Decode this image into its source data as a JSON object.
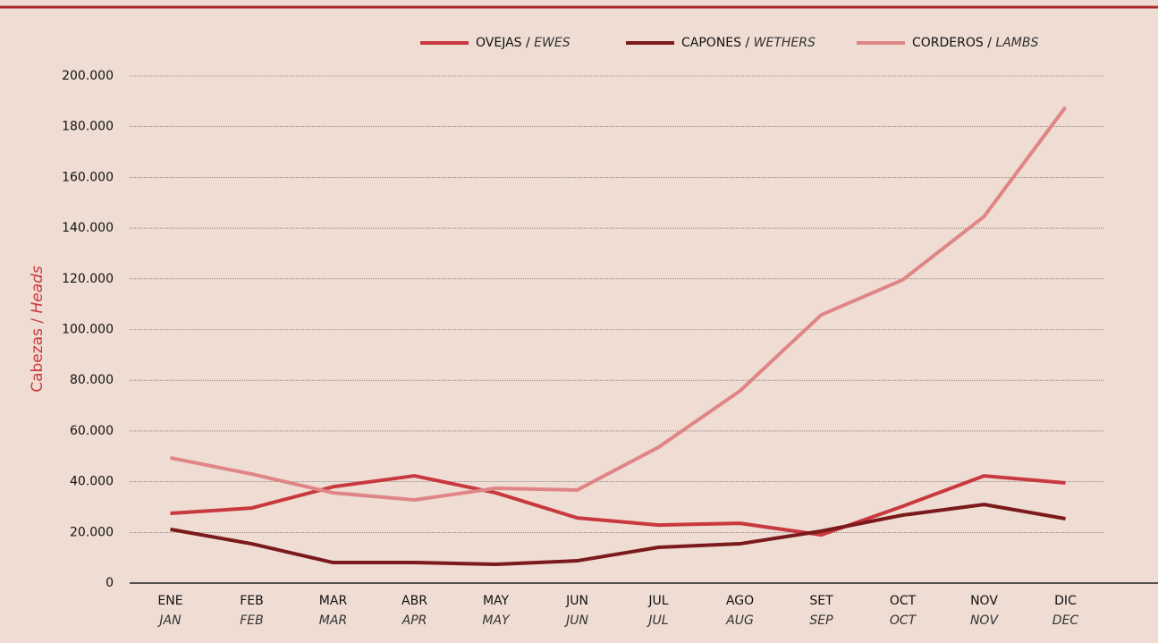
{
  "chart_data": {
    "type": "line",
    "ylabel": {
      "text": "Cabezas /",
      "text_en": "Heads"
    },
    "categories": [
      "ENE",
      "FEB",
      "MAR",
      "ABR",
      "MAY",
      "JUN",
      "JUL",
      "AGO",
      "SET",
      "OCT",
      "NOV",
      "DIC"
    ],
    "categories_en": [
      "JAN",
      "FEB",
      "MAR",
      "APR",
      "MAY",
      "JUN",
      "JUL",
      "AUG",
      "SEP",
      "OCT",
      "NOV",
      "DEC"
    ],
    "series": [
      {
        "name": "OVEJAS /",
        "name_en": "EWES",
        "color": "#c8393f",
        "values": [
          27500,
          29600,
          38000,
          42300,
          35600,
          25700,
          22900,
          23600,
          19000,
          30300,
          42300,
          39500
        ]
      },
      {
        "name": "CAPONES /",
        "name_en": "WETHERS",
        "color": "#7a1a1a",
        "values": [
          21200,
          15500,
          8100,
          8100,
          7400,
          8800,
          14100,
          15500,
          20500,
          26800,
          31000,
          25400
        ]
      },
      {
        "name": "CORDEROS /",
        "name_en": "LAMBS",
        "color": "#e08585",
        "values": [
          49400,
          43000,
          35600,
          32800,
          37400,
          36700,
          53600,
          75800,
          105800,
          119600,
          144600,
          187700
        ]
      }
    ],
    "ylim": [
      0,
      200000
    ],
    "yticks": [
      0,
      {
        "value": 20000,
        "label": "20.000"
      },
      {
        "value": 40000,
        "label": "40.000"
      },
      {
        "value": 60000,
        "label": "60.000"
      },
      {
        "value": 80000,
        "label": "80.000"
      },
      {
        "value": 100000,
        "label": "100.000"
      },
      {
        "value": 120000,
        "label": "120.000"
      },
      {
        "value": 140000,
        "label": "140.000"
      },
      {
        "value": 160000,
        "label": "160.000"
      },
      {
        "value": 180000,
        "label": "180.000"
      },
      {
        "value": 200000,
        "label": "200.000"
      }
    ],
    "grid": true,
    "legend": "top-right"
  }
}
